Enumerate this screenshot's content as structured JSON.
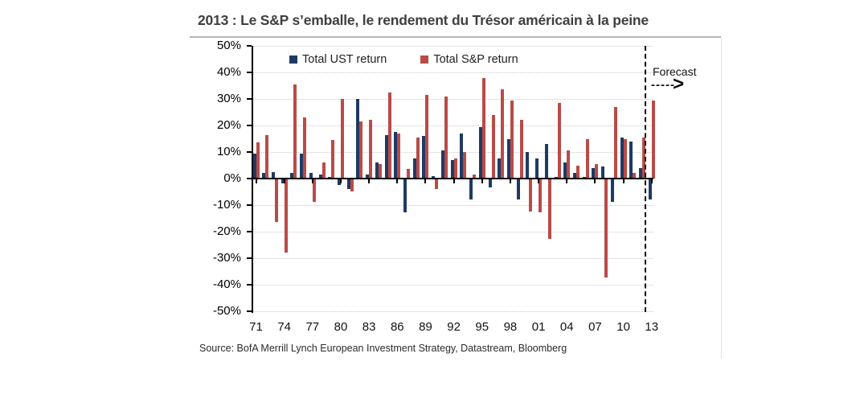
{
  "title": "2013 : Le S&P s’emballe, le rendement du Trésor américain à la peine",
  "source": "Source: BofA Merrill Lynch European Investment Strategy, Datastream, Bloomberg",
  "legend": [
    {
      "label": "Total UST return",
      "color": "#1f3a63"
    },
    {
      "label": "Total S&P return",
      "color": "#b94b48"
    }
  ],
  "forecast": {
    "label": "Forecast",
    "arrow_dashes": "-----",
    "arrow_head": ">"
  },
  "colors": {
    "ust": "#1f3a63",
    "sp": "#b94b48",
    "grid": "#c9c9c9",
    "axis": "#000000"
  },
  "chart_data": {
    "type": "bar",
    "title": "2013 : Le S&P s’emballe, le rendement du Trésor américain à la peine",
    "xlabel": "",
    "ylabel": "",
    "ylim": [
      -50,
      50
    ],
    "y_ticks": [
      "50%",
      "40%",
      "30%",
      "20%",
      "10%",
      "0%",
      "-10%",
      "-20%",
      "-30%",
      "-40%",
      "-50%"
    ],
    "y_tick_values": [
      50,
      40,
      30,
      20,
      10,
      0,
      -10,
      -20,
      -30,
      -40,
      -50
    ],
    "grid": "dotted horizontal, none at 0%",
    "legend_position": "top-center-inside",
    "x": [
      1971,
      1972,
      1973,
      1974,
      1975,
      1976,
      1977,
      1978,
      1979,
      1980,
      1981,
      1982,
      1983,
      1984,
      1985,
      1986,
      1987,
      1988,
      1989,
      1990,
      1991,
      1992,
      1993,
      1994,
      1995,
      1996,
      1997,
      1998,
      1999,
      2000,
      2001,
      2002,
      2003,
      2004,
      2005,
      2006,
      2007,
      2008,
      2009,
      2010,
      2011,
      2012,
      2013
    ],
    "x_tick_labels": [
      "71",
      "74",
      "77",
      "80",
      "83",
      "86",
      "89",
      "92",
      "95",
      "98",
      "01",
      "04",
      "07",
      "10",
      "13"
    ],
    "x_tick_every": 3,
    "forecast_divider_before_x": 2013,
    "series": [
      {
        "name": "Total UST return",
        "color": "#1f3a63",
        "values": [
          9.5,
          2,
          2.5,
          -1.5,
          2,
          9.5,
          2,
          1.5,
          0.5,
          -2,
          -3.5,
          30,
          1.5,
          6,
          16.5,
          17.5,
          -12.5,
          7.5,
          16,
          1,
          10.5,
          7,
          17,
          -7.5,
          19.5,
          -3,
          7.5,
          15,
          -7.5,
          10,
          7.5,
          13,
          0.5,
          6,
          2,
          0.5,
          4,
          4.5,
          -8.5,
          15.5,
          14,
          4,
          -7.5
        ]
      },
      {
        "name": "Total S&P return",
        "color": "#b94b48",
        "values": [
          13.5,
          16.5,
          -16,
          -27.5,
          35.5,
          23,
          -8.5,
          6,
          14.5,
          30,
          -4.5,
          21.5,
          22,
          5.5,
          32.5,
          17,
          3.5,
          15.5,
          31.5,
          -3.5,
          31,
          7.5,
          10,
          1.5,
          38,
          24,
          33.5,
          29.5,
          22,
          -12,
          -12.5,
          -22.5,
          28.5,
          10.5,
          5,
          15,
          5.5,
          -37,
          27,
          15,
          2,
          15.5,
          29.5
        ]
      }
    ]
  }
}
